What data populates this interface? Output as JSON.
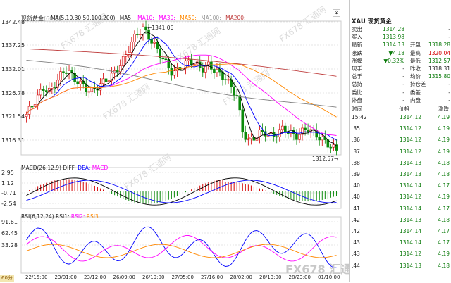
{
  "header": {
    "symbol_name": "现货黄金",
    "period": "60分",
    "ma_title": "MA(5,10,30,50,100,200)",
    "ma_labels": [
      "MA5:",
      "MA10:",
      "MA30:",
      "MA50:",
      "MA100:",
      "MA200:"
    ]
  },
  "price_axis": [
    "1342.48",
    "1337.25",
    "1332.01",
    "1326.78",
    "1321.54",
    "1316.31"
  ],
  "annotations": {
    "high": "1341.06",
    "low": "1312.57"
  },
  "macd": {
    "title": "MACD(26,12,9) DIFF:",
    "dea": "DEA:",
    "macd": "MACD",
    "axis": [
      "2.95",
      "1.12",
      "-0.71",
      "-2.54"
    ]
  },
  "rsi": {
    "title": "RSI(6,12,24) RSI1:",
    "rsi2": "RSI2:",
    "rsi3": "RSI3",
    "axis": [
      "91.61",
      "62.45",
      "33.28"
    ]
  },
  "time_axis": [
    "22/15:00",
    "23/01:00",
    "23/12:00",
    "26/09:00",
    "26/19:00",
    "27/05:00",
    "27/16:00",
    "28/02:00",
    "28/13:00",
    "28/23:00",
    "01/10:00"
  ],
  "period_button": "60分",
  "watermarks": [
    "FX678 汇通网",
    "FX678 汇通网",
    "FX678 汇通网",
    "FX678 汇通网",
    "FX678 汇通网",
    "FX678 汇通网"
  ],
  "logo": {
    "brand": "FX678",
    "cn": "汇通网"
  },
  "side": {
    "code": "XAU",
    "name": "现货黄金",
    "rows": [
      {
        "l": "卖出",
        "v": "1314.28",
        "l2": "",
        "v2": "-",
        "vc": "green"
      },
      {
        "l": "买入",
        "v": "1313.98",
        "l2": "",
        "v2": "-",
        "vc": "green"
      },
      {
        "l": "最新",
        "v": "1314.13",
        "l2": "开盘",
        "v2": "1318.28",
        "vc": "green",
        "v2c": "green"
      },
      {
        "l": "涨跌",
        "v": "▼4.18",
        "l2": "最高",
        "v2": "1320.04",
        "vc": "green",
        "v2c": "red"
      },
      {
        "l": "涨幅",
        "v": "▼0.32%",
        "l2": "最低",
        "v2": "1312.57",
        "vc": "green",
        "v2c": "green"
      },
      {
        "l": "现手",
        "v": "-",
        "l2": "昨收",
        "v2": "1318.31",
        "vc": "",
        "v2c": ""
      },
      {
        "l": "总手",
        "v": "-",
        "l2": "均价",
        "v2": "1315.80",
        "vc": "",
        "v2c": "green"
      },
      {
        "l": "总持",
        "v": "-",
        "l2": "持仓差",
        "v2": "-",
        "vc": "",
        "v2c": ""
      },
      {
        "l": "委比",
        "v": "-",
        "l2": "委差",
        "v2": "-",
        "vc": "",
        "v2c": ""
      },
      {
        "l": "外盘",
        "v": "-",
        "l2": "内盘",
        "v2": "-",
        "vc": "",
        "v2c": ""
      }
    ],
    "ticks_header": {
      "time": "时间",
      "price": "价格",
      "change": "涨跌"
    },
    "ticks": [
      {
        "t": "15:42",
        "p": "1314.12",
        "c": "4.19"
      },
      {
        "t": ".35",
        "p": "1314.12",
        "c": "4.19"
      },
      {
        "t": ".36",
        "p": "1314.12",
        "c": "4.19"
      },
      {
        "t": ".37",
        "p": "1314.12",
        "c": "4.19"
      },
      {
        "t": ".38",
        "p": "1314.13",
        "c": "4.18"
      },
      {
        "t": ".39",
        "p": "1314.13",
        "c": "4.18"
      },
      {
        "t": ".40",
        "p": "1314.14",
        "c": "4.17"
      },
      {
        "t": ".40",
        "p": "1314.12",
        "c": "4.19"
      },
      {
        "t": ".41",
        "p": "1314.14",
        "c": "4.17"
      },
      {
        "t": ".42",
        "p": "1314.13",
        "c": "4.18"
      },
      {
        "t": ".42",
        "p": "1314.14",
        "c": "4.17"
      },
      {
        "t": ".43",
        "p": "1314.14",
        "c": "4.17"
      },
      {
        "t": ".43",
        "p": "1314.12",
        "c": "4.19"
      },
      {
        "t": ".44",
        "p": "1314.13",
        "c": "4.18"
      }
    ]
  },
  "colors": {
    "up": "#d40000",
    "down": "#0a8a0a",
    "ma5": "#000000",
    "ma10": "#0000ff",
    "ma30": "#ff00ff",
    "ma50": "#ff8800",
    "ma100": "#808080",
    "ma200": "#c04040"
  }
}
